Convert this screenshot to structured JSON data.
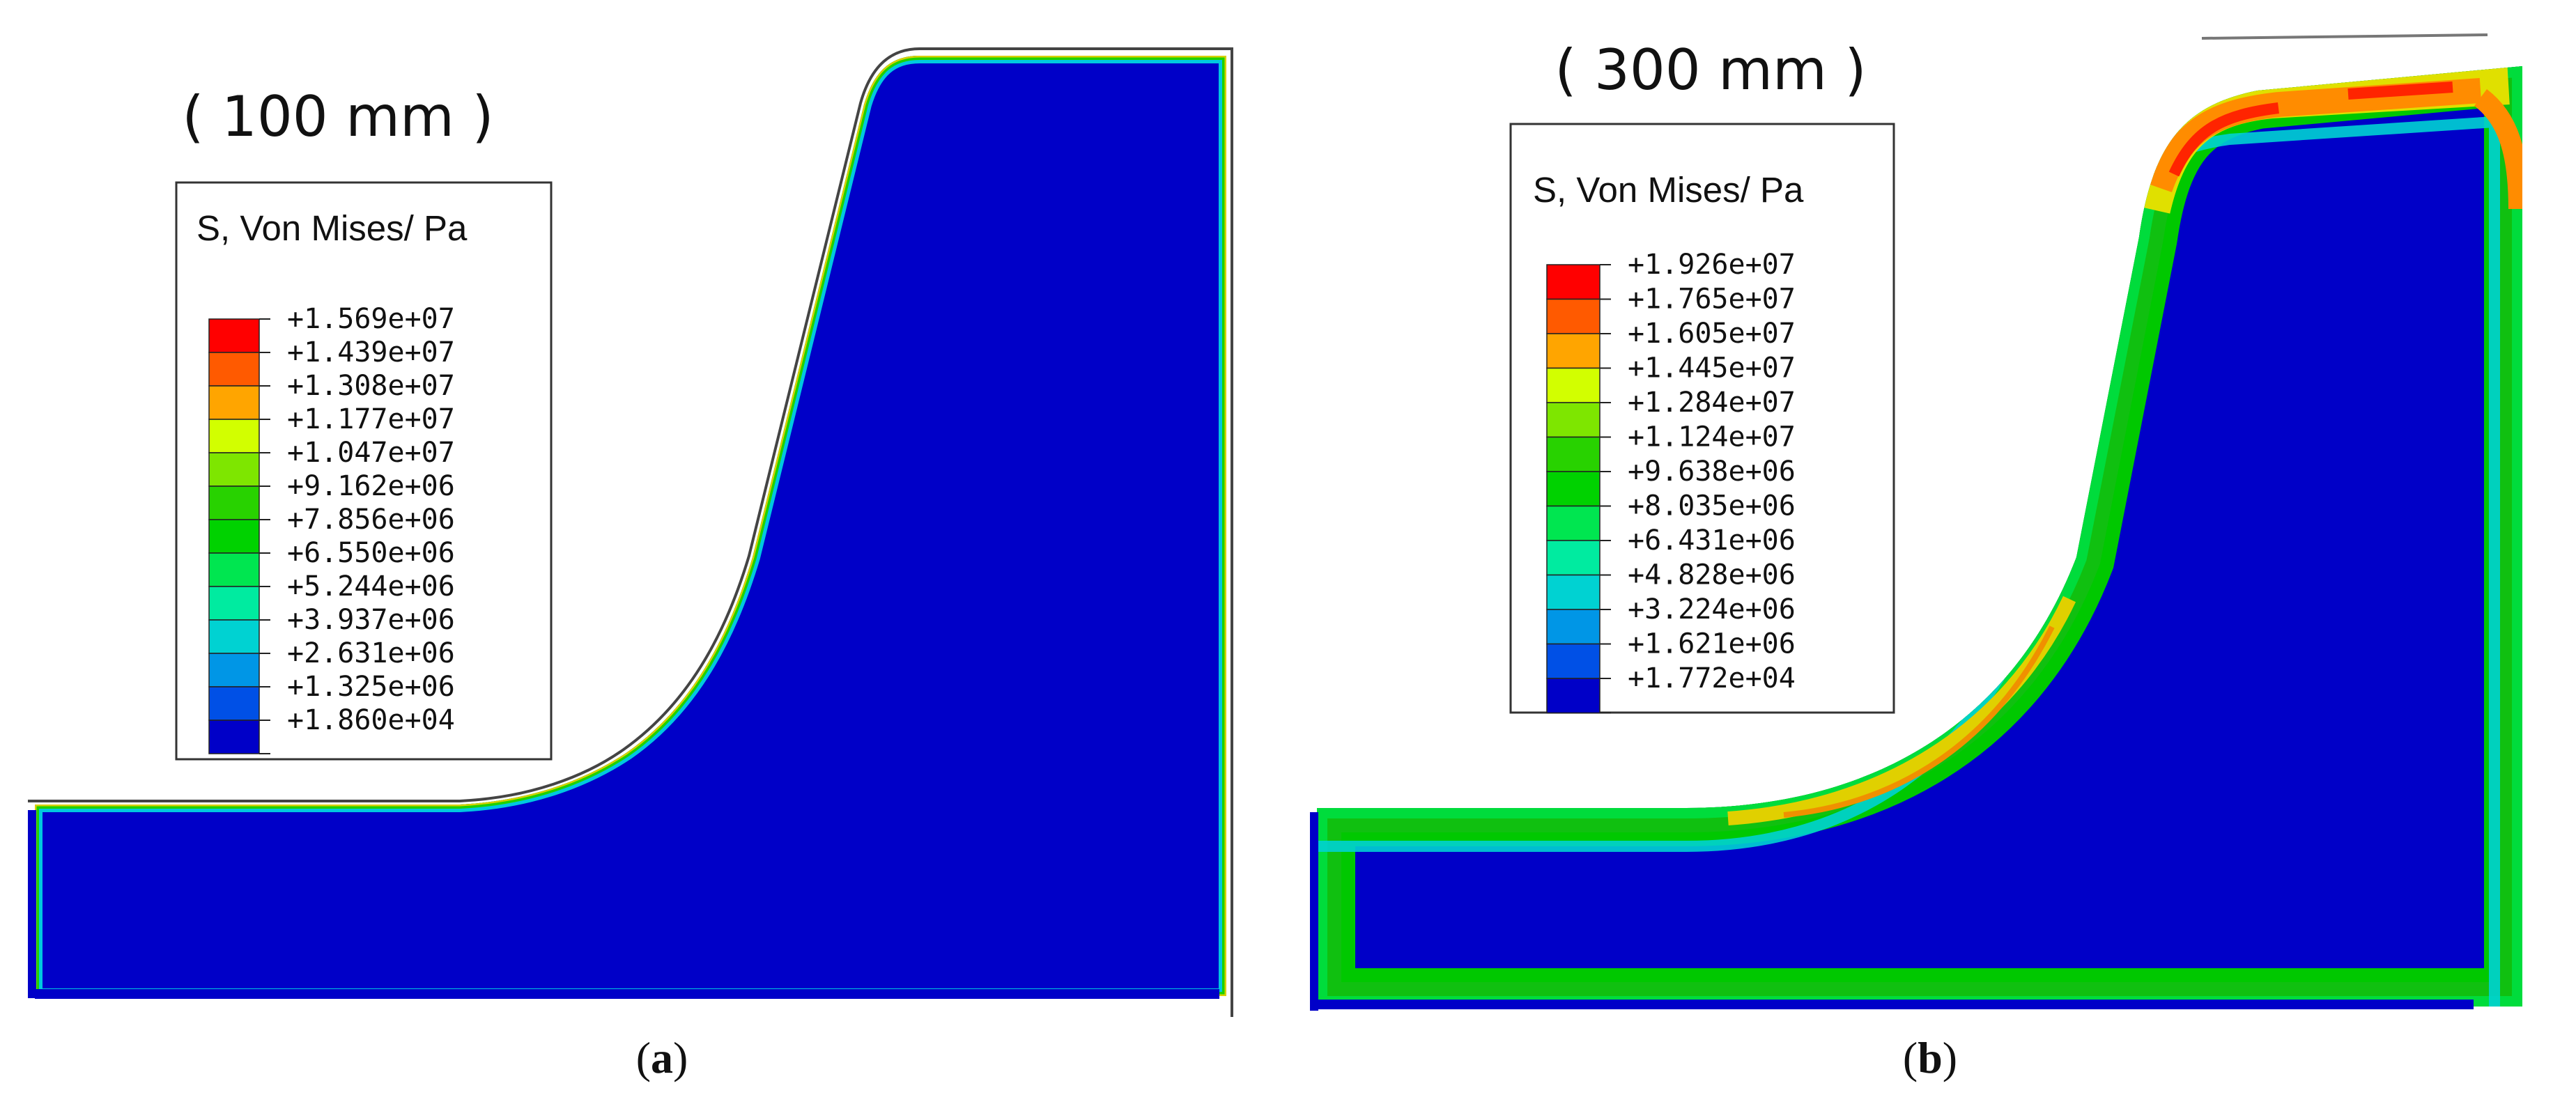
{
  "panels": [
    {
      "id": "a",
      "title": "( 100 mm )",
      "legend_header": "S, Von Mises/ Pa",
      "legend_values": [
        "+1.569e+07",
        "+1.439e+07",
        "+1.308e+07",
        "+1.177e+07",
        "+1.047e+07",
        "+9.162e+06",
        "+7.856e+06",
        "+6.550e+06",
        "+5.244e+06",
        "+3.937e+06",
        "+2.631e+06",
        "+1.325e+06",
        "+1.860e+04"
      ],
      "caption_open": "(",
      "caption_letter": "a",
      "caption_close": ")"
    },
    {
      "id": "b",
      "title": "( 300 mm )",
      "legend_header": "S, Von Mises/ Pa",
      "legend_values": [
        "+1.926e+07",
        "+1.765e+07",
        "+1.605e+07",
        "+1.445e+07",
        "+1.284e+07",
        "+1.124e+07",
        "+9.638e+06",
        "+8.035e+06",
        "+6.431e+06",
        "+4.828e+06",
        "+3.224e+06",
        "+1.621e+06",
        "+1.772e+04"
      ],
      "caption_open": "(",
      "caption_letter": "b",
      "caption_close": ")"
    }
  ],
  "legend_colors": [
    "#ff0000",
    "#ff5a00",
    "#ffa500",
    "#d2ff00",
    "#7ee600",
    "#28d200",
    "#00d200",
    "#00e650",
    "#00eba0",
    "#00d2d2",
    "#0096e6",
    "#0050e6",
    "#0000c8"
  ]
}
